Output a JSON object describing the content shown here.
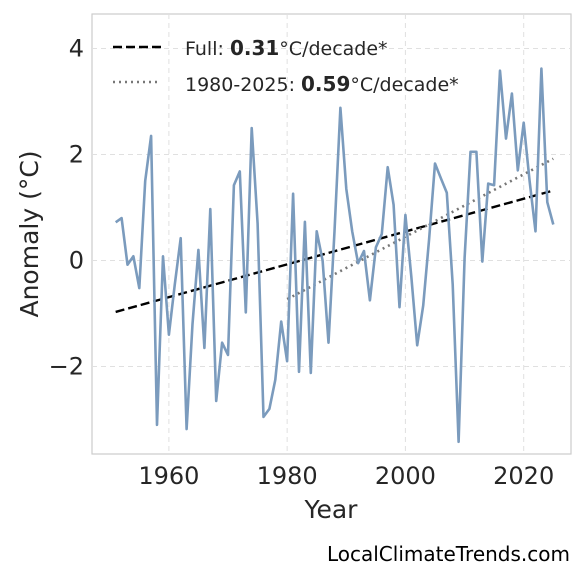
{
  "chart_data": {
    "type": "line",
    "xlabel": "Year",
    "ylabel": "Anomaly (°C)",
    "xlim": [
      1947,
      2028
    ],
    "ylim": [
      -3.65,
      4.65
    ],
    "xticks": [
      1960,
      1980,
      2000,
      2020
    ],
    "xtick_labels": [
      "1960",
      "1980",
      "2000",
      "2020"
    ],
    "yticks": [
      4,
      2,
      0,
      -2
    ],
    "ytick_labels": [
      "4",
      "2",
      "0",
      "−2"
    ],
    "grid": true,
    "legend_placement": "top-left",
    "legend": [
      {
        "prefix": "Full: ",
        "value": "0.31",
        "suffix": "°C/decade*",
        "style": "dashed"
      },
      {
        "prefix": "1980-2025: ",
        "value": "0.59",
        "suffix": "°C/decade*",
        "style": "dotted"
      }
    ],
    "series": [
      {
        "x": [
          1951,
          1952,
          1953,
          1954,
          1955,
          1956,
          1957,
          1958,
          1959,
          1960,
          1961,
          1962,
          1963,
          1964,
          1965,
          1966,
          1967,
          1968,
          1969,
          1970,
          1971,
          1972,
          1973,
          1974,
          1975,
          1976,
          1977,
          1978,
          1979,
          1980,
          1981,
          1982,
          1983,
          1984,
          1985,
          1986,
          1987,
          1988,
          1989,
          1990,
          1991,
          1992,
          1993,
          1994,
          1995,
          1996,
          1997,
          1998,
          1999,
          2000,
          2001,
          2002,
          2003,
          2004,
          2005,
          2006,
          2007,
          2008,
          2009,
          2010,
          2011,
          2012,
          2013,
          2014,
          2015,
          2016,
          2017,
          2018,
          2019,
          2020,
          2021,
          2022,
          2023,
          2024,
          2025
        ],
        "values": [
          0.72,
          0.8,
          -0.08,
          0.08,
          -0.52,
          1.5,
          2.35,
          -3.1,
          0.08,
          -1.4,
          -0.45,
          0.42,
          -3.18,
          -1.2,
          0.2,
          -1.65,
          0.97,
          -2.65,
          -1.55,
          -1.78,
          1.42,
          1.68,
          -0.98,
          2.5,
          0.7,
          -2.95,
          -2.8,
          -2.25,
          -1.15,
          -1.9,
          1.26,
          -2.1,
          0.73,
          -2.12,
          0.55,
          0.0,
          -1.55,
          0.55,
          2.88,
          1.35,
          0.55,
          -0.05,
          0.18,
          -0.75,
          0.25,
          0.5,
          1.76,
          1.05,
          -0.88,
          0.86,
          -0.3,
          -1.6,
          -0.85,
          0.4,
          1.83,
          1.55,
          1.28,
          -0.45,
          -3.42,
          0.05,
          2.05,
          2.05,
          -0.02,
          1.45,
          1.42,
          3.58,
          2.3,
          3.15,
          1.7,
          2.6,
          1.5,
          0.55,
          3.62,
          1.1,
          0.68
        ],
        "color": "#7b9bbd"
      }
    ],
    "trendlines": [
      {
        "x": [
          1951,
          2025
        ],
        "y": [
          -0.97,
          1.32
        ],
        "style": "dashed",
        "color": "#000000"
      },
      {
        "x": [
          1980,
          2025
        ],
        "y": [
          -0.73,
          1.92
        ],
        "style": "dotted",
        "color": "#777777"
      }
    ]
  },
  "watermark": "LocalClimateTrends.com"
}
